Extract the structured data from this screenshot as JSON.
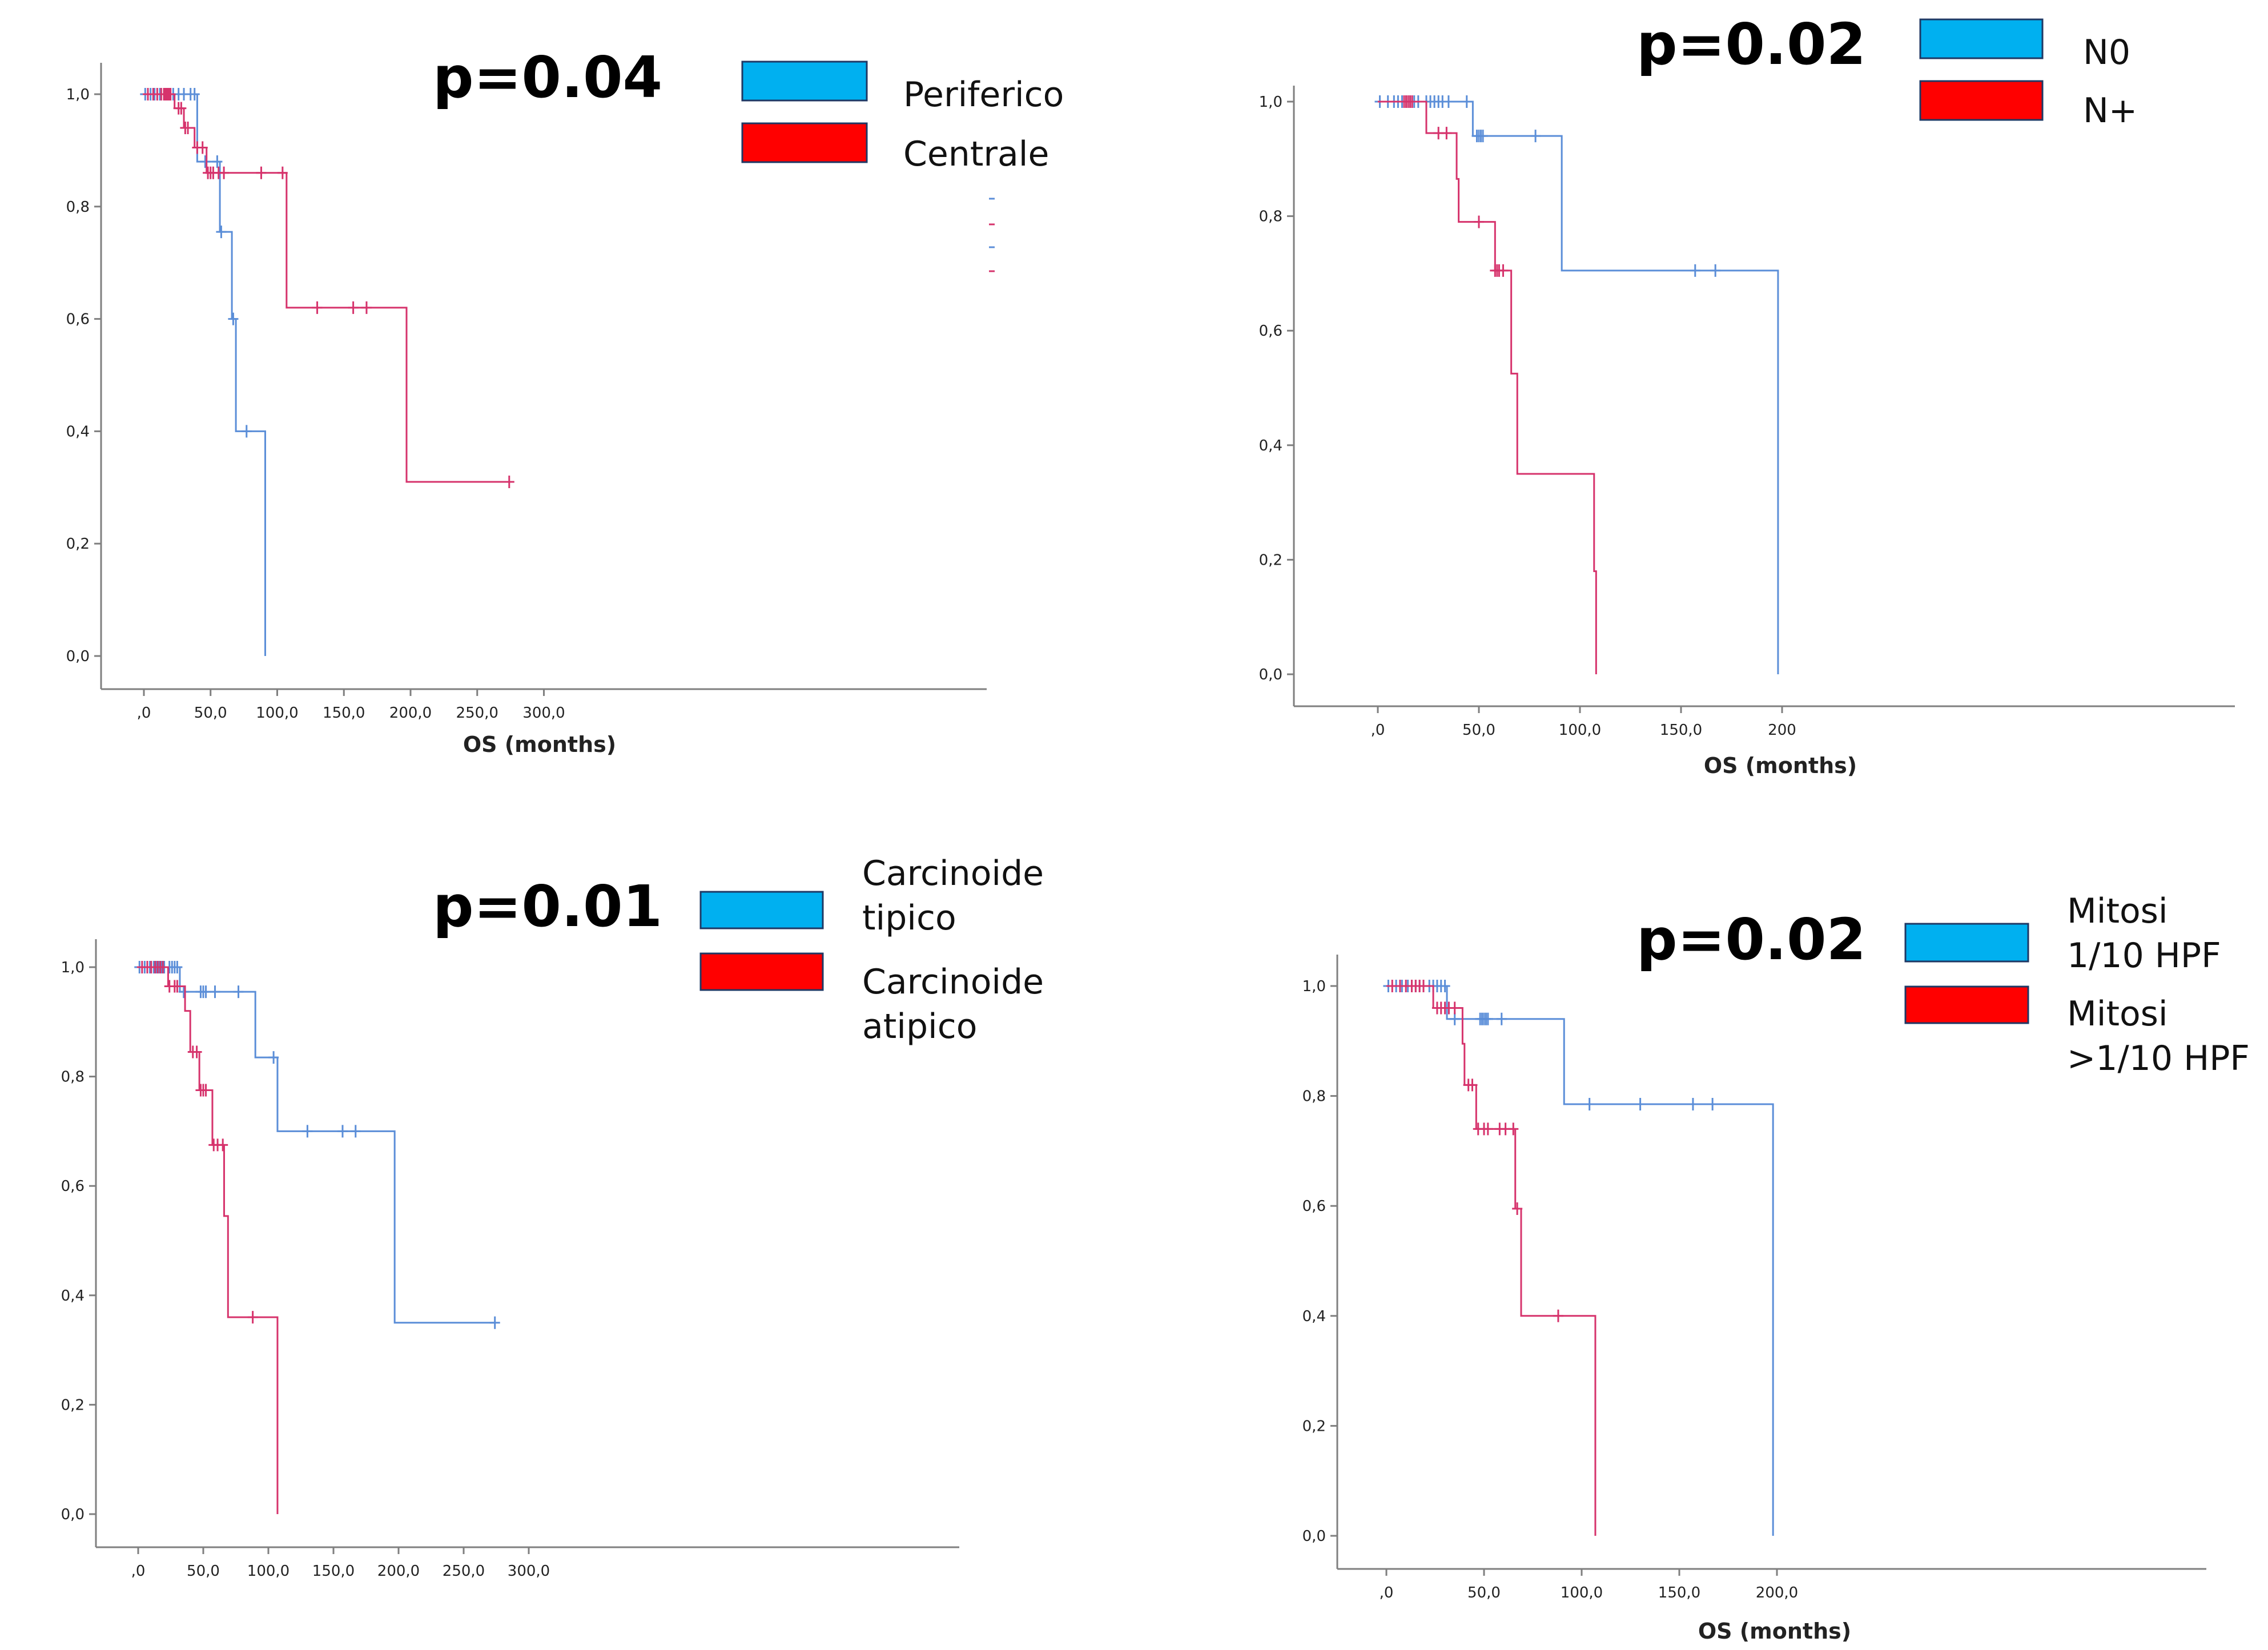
{
  "colors": {
    "blue_curve": "#5b8ed8",
    "red_curve": "#d6336c",
    "blue_legend": "#00b0f0",
    "red_legend": "#ff0000",
    "axis": "#7f7f7f"
  },
  "chart_data": [
    {
      "type": "line",
      "subtype": "kaplan-meier",
      "annotation": "p=0.04",
      "xlabel": "OS (months)",
      "ylabel": "",
      "xlim": [
        -15,
        315
      ],
      "ylim": [
        0,
        1
      ],
      "x_ticks": [
        ",0",
        "50,0",
        "100,0",
        "150,0",
        "200,0",
        "250,0",
        "300,0"
      ],
      "y_ticks": [
        "0,0",
        "0,2",
        "0,4",
        "0,6",
        "0,8",
        "1,0"
      ],
      "legend": [
        "Periferico",
        "Centrale"
      ],
      "series": [
        {
          "name": "Periferico",
          "steps": [
            [
              0,
              1.0
            ],
            [
              40,
              0.88
            ],
            [
              57,
              0.755
            ],
            [
              66,
              0.6
            ],
            [
              69,
              0.4
            ],
            [
              91,
              0.0
            ]
          ],
          "censored": [
            1,
            5,
            8,
            12,
            15,
            18,
            22,
            26,
            30,
            35,
            38,
            46,
            55,
            58,
            67,
            77
          ]
        },
        {
          "name": "Centrale",
          "steps": [
            [
              0,
              1.0
            ],
            [
              23,
              0.975
            ],
            [
              30,
              0.94
            ],
            [
              38,
              0.905
            ],
            [
              47,
              0.86
            ],
            [
              107,
              0.62
            ],
            [
              197,
              0.31
            ]
          ],
          "censored": [
            3,
            7,
            10,
            13,
            15,
            16,
            17,
            18,
            19,
            20,
            26,
            28,
            31,
            33,
            40,
            44,
            48,
            50,
            52,
            56,
            60,
            88,
            104,
            130,
            157,
            167,
            274
          ]
        }
      ]
    },
    {
      "type": "line",
      "subtype": "kaplan-meier",
      "annotation": "p=0.02",
      "xlabel": "OS (months)",
      "ylabel": "",
      "xlim": [
        -10,
        205
      ],
      "ylim": [
        0,
        1
      ],
      "x_ticks": [
        ",0",
        "50,0",
        "100,0",
        "150,0",
        "200"
      ],
      "y_ticks": [
        "0,0",
        "0,2",
        "0,4",
        "0,6",
        "0,8",
        "1,0"
      ],
      "legend": [
        "N0",
        "N+"
      ],
      "series": [
        {
          "name": "N0",
          "steps": [
            [
              0,
              1.0
            ],
            [
              47,
              0.94
            ],
            [
              91,
              0.705
            ],
            [
              198,
              0.0
            ]
          ],
          "censored": [
            1,
            5,
            8,
            10,
            12,
            14,
            16,
            18,
            20,
            24,
            26,
            28,
            30,
            32,
            35,
            44,
            49,
            50,
            51,
            52,
            78,
            157,
            167
          ]
        },
        {
          "name": "N+",
          "steps": [
            [
              0,
              1.0
            ],
            [
              24,
              0.945
            ],
            [
              39,
              0.865
            ],
            [
              40,
              0.79
            ],
            [
              58,
              0.705
            ],
            [
              66,
              0.525
            ],
            [
              69,
              0.35
            ],
            [
              107,
              0.18
            ],
            [
              108,
              0.0
            ]
          ],
          "censored": [
            13,
            14,
            15,
            16,
            17,
            30,
            34,
            50,
            58,
            59,
            60,
            62
          ]
        }
      ]
    },
    {
      "type": "line",
      "subtype": "kaplan-meier",
      "annotation": "p=0.01",
      "xlabel": "",
      "ylabel": "",
      "xlim": [
        -15,
        315
      ],
      "ylim": [
        0,
        1
      ],
      "x_ticks": [
        ",0",
        "50,0",
        "100,0",
        "150,0",
        "200,0",
        "250,0",
        "300,0"
      ],
      "y_ticks": [
        "0,0",
        "0,2",
        "0,4",
        "0,6",
        "0,8",
        "1,0"
      ],
      "legend": [
        "Carcinoide tipico",
        "Carcinoide atipico"
      ],
      "series": [
        {
          "name": "Carcinoide tipico",
          "steps": [
            [
              0,
              1.0
            ],
            [
              32,
              0.955
            ],
            [
              90,
              0.835
            ],
            [
              107,
              0.7
            ],
            [
              197,
              0.35
            ]
          ],
          "censored": [
            1,
            5,
            9,
            12,
            14,
            16,
            18,
            20,
            24,
            26,
            28,
            30,
            35,
            48,
            50,
            52,
            59,
            77,
            104,
            130,
            157,
            167,
            274
          ]
        },
        {
          "name": "Carcinoide atipico",
          "steps": [
            [
              0,
              1.0
            ],
            [
              23,
              0.965
            ],
            [
              36,
              0.92
            ],
            [
              40,
              0.845
            ],
            [
              47,
              0.775
            ],
            [
              57,
              0.675
            ],
            [
              66,
              0.545
            ],
            [
              69,
              0.36
            ],
            [
              107,
              0.0
            ]
          ],
          "censored": [
            3,
            7,
            10,
            13,
            15,
            17,
            19,
            24,
            28,
            30,
            42,
            45,
            48,
            50,
            52,
            58,
            61,
            65,
            88
          ]
        }
      ]
    },
    {
      "type": "line",
      "subtype": "kaplan-meier",
      "annotation": "p=0.02",
      "xlabel": "OS (months)",
      "ylabel": "",
      "xlim": [
        -10,
        210
      ],
      "ylim": [
        0,
        1
      ],
      "x_ticks": [
        ",0",
        "50,0",
        "100,0",
        "150,0",
        "200,0"
      ],
      "y_ticks": [
        "0,0",
        "0,2",
        "0,4",
        "0,6",
        "0,8",
        "1,0"
      ],
      "legend": [
        "Mitosi 1/10 HPF",
        "Mitosi >1/10 HPF"
      ],
      "series": [
        {
          "name": "Mitosi 1/10 HPF",
          "steps": [
            [
              0,
              1.0
            ],
            [
              31,
              0.94
            ],
            [
              91,
              0.785
            ],
            [
              198,
              0.0
            ]
          ],
          "censored": [
            1,
            5,
            8,
            11,
            13,
            15,
            17,
            19,
            22,
            24,
            26,
            28,
            30,
            35,
            48,
            49,
            50,
            51,
            52,
            59,
            104,
            130,
            157,
            167
          ]
        },
        {
          "name": "Mitosi >1/10 HPF",
          "steps": [
            [
              0,
              1.0
            ],
            [
              24,
              0.96
            ],
            [
              39,
              0.895
            ],
            [
              40,
              0.82
            ],
            [
              46,
              0.74
            ],
            [
              66,
              0.595
            ],
            [
              69,
              0.4
            ],
            [
              107,
              0.0
            ]
          ],
          "censored": [
            3,
            7,
            10,
            13,
            15,
            17,
            19,
            26,
            28,
            30,
            32,
            35,
            42,
            44,
            47,
            50,
            52,
            58,
            61,
            65,
            67,
            88
          ]
        }
      ]
    }
  ]
}
